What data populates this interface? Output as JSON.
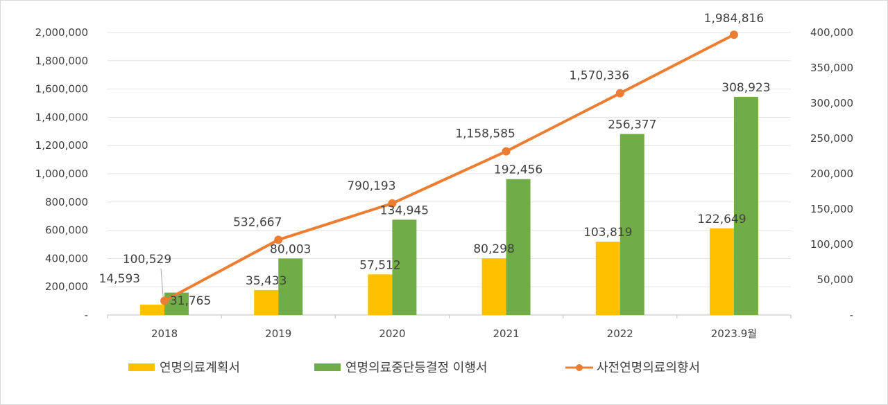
{
  "chart_data": {
    "type": "bar+line",
    "categories": [
      "2018",
      "2019",
      "2020",
      "2021",
      "2022",
      "2023.9월"
    ],
    "series": [
      {
        "name": "연명의료계획서",
        "type": "bar",
        "axis": "right",
        "color": "#FFC000",
        "values": [
          14593,
          35433,
          57512,
          80298,
          103819,
          122649
        ],
        "labels": [
          "14,593",
          "35,433",
          "57,512",
          "80,298",
          "103,819",
          "122,649"
        ]
      },
      {
        "name": "연명의료중단등결정 이행서",
        "type": "bar",
        "axis": "right",
        "color": "#70AD47",
        "values": [
          31765,
          80003,
          134945,
          192456,
          256377,
          308923
        ],
        "labels": [
          "31,765",
          "80,003",
          "134,945",
          "192,456",
          "256,377",
          "308,923"
        ]
      },
      {
        "name": "사전연명의료의향서",
        "type": "line",
        "axis": "left",
        "color": "#ED7D31",
        "values": [
          100529,
          532667,
          790193,
          1158585,
          1570336,
          1984816
        ],
        "labels": [
          "100,529",
          "532,667",
          "790,193",
          "1,158,585",
          "1,570,336",
          "1,984,816"
        ]
      }
    ],
    "left_axis": {
      "ylim": [
        0,
        2000000
      ],
      "ticks": [
        "-",
        "200,000",
        "400,000",
        "600,000",
        "800,000",
        "1,000,000",
        "1,200,000",
        "1,400,000",
        "1,600,000",
        "1,800,000",
        "2,000,000"
      ]
    },
    "right_axis": {
      "ylim": [
        0,
        400000
      ],
      "ticks": [
        "-",
        "50,000",
        "100,000",
        "150,000",
        "200,000",
        "250,000",
        "300,000",
        "350,000",
        "400,000"
      ]
    },
    "grid": true,
    "legend_position": "bottom"
  }
}
